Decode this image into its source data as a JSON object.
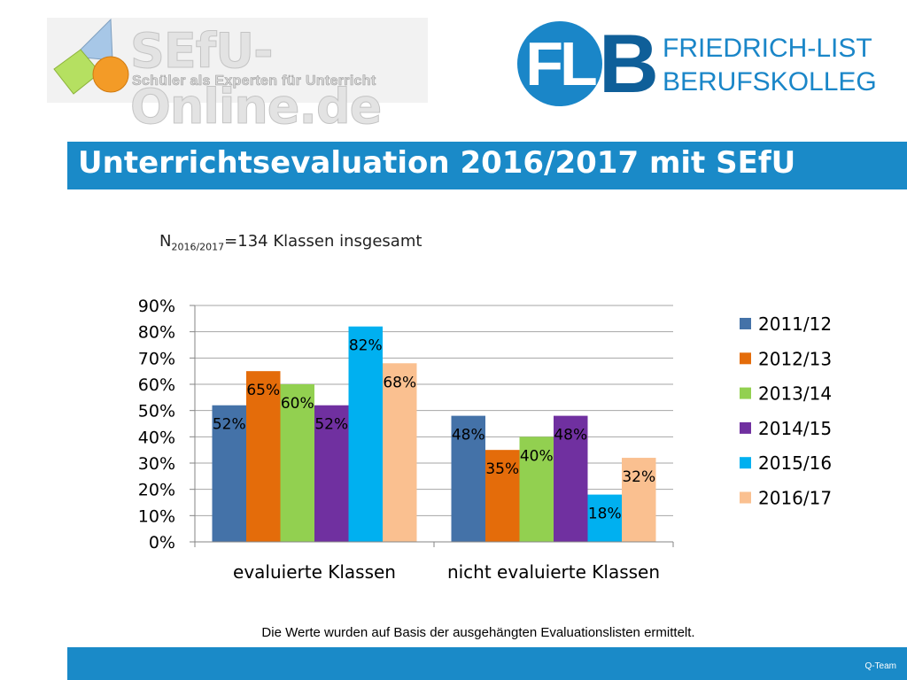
{
  "logos": {
    "sefu_title": "SEfU-Online.de",
    "sefu_slogan": "Schüler als Experten für Unterricht",
    "flb_initials": "FL",
    "flb_letter": "B",
    "flb_line1": "FRIEDRICH-LIST",
    "flb_line2": "BERUFSKOLLEG"
  },
  "title": "Unterrichtsevaluation 2016/2017 mit SEfU",
  "subtitle": {
    "prefix": "N",
    "subscript": "2016/2017",
    "suffix": "=134  Klassen insgesamt"
  },
  "footnote": "Die Werte wurden auf Basis der ausgehängten Evaluationslisten ermittelt.",
  "footer_label": "Q-Team",
  "colors": {
    "accent": "#1a8ac8",
    "series": [
      "#4472a8",
      "#e46c0a",
      "#92d050",
      "#7030a0",
      "#00b0f0",
      "#fac090"
    ]
  },
  "chart_data": {
    "type": "bar",
    "categories": [
      "evaluierte Klassen",
      "nicht evaluierte Klassen"
    ],
    "series": [
      {
        "name": "2011/12",
        "values": [
          52,
          48
        ]
      },
      {
        "name": "2012/13",
        "values": [
          65,
          35
        ]
      },
      {
        "name": "2013/14",
        "values": [
          60,
          40
        ]
      },
      {
        "name": "2014/15",
        "values": [
          52,
          48
        ]
      },
      {
        "name": "2015/16",
        "values": [
          82,
          18
        ]
      },
      {
        "name": "2016/17",
        "values": [
          68,
          32
        ]
      }
    ],
    "ylim": [
      0,
      90
    ],
    "yticks": [
      "0%",
      "10%",
      "20%",
      "30%",
      "40%",
      "50%",
      "60%",
      "70%",
      "80%",
      "90%"
    ],
    "value_suffix": "%",
    "grid": true,
    "legend": "right"
  }
}
